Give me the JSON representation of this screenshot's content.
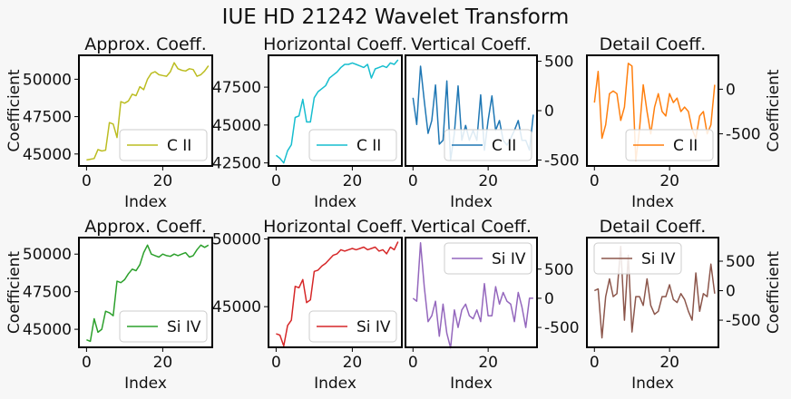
{
  "figure": {
    "title": "IUE HD 21242 Wavelet Transform",
    "background": "#f7f7f7"
  },
  "chart_data": [
    {
      "type": "line",
      "title": "Approx. Coeff.",
      "xlabel": "Index",
      "ylabel": "Coefficient",
      "y_axis_side": "left",
      "xlim": [
        -2,
        33
      ],
      "ylim": [
        44200,
        51600
      ],
      "xticks": [
        0,
        20
      ],
      "yticks": [
        45000,
        47500,
        50000
      ],
      "ytick_labels": [
        "45000",
        "47500",
        "50000"
      ],
      "legend_loc": "lower-right",
      "series": [
        {
          "name": "C II",
          "color": "#bcbd22",
          "values": [
            44600,
            44650,
            44700,
            45300,
            45200,
            45250,
            47100,
            47000,
            46100,
            48500,
            48400,
            48550,
            49000,
            48900,
            49500,
            49300,
            50000,
            50400,
            50500,
            50300,
            50250,
            50200,
            50500,
            51100,
            50700,
            50600,
            50550,
            50700,
            50650,
            50200,
            50300,
            50550,
            50900
          ]
        }
      ]
    },
    {
      "type": "line",
      "title": "Horizontal Coeff.",
      "xlabel": "Index",
      "ylabel": "",
      "y_axis_side": "left",
      "xlim": [
        -2,
        33
      ],
      "ylim": [
        42300,
        49600
      ],
      "xticks": [
        0,
        20
      ],
      "yticks": [
        42500,
        45000,
        47500
      ],
      "ytick_labels": [
        "42500",
        "45000",
        "47500"
      ],
      "legend_loc": "lower-right",
      "series": [
        {
          "name": "C II",
          "color": "#17becf",
          "values": [
            43000,
            42800,
            42500,
            43300,
            43700,
            45500,
            45600,
            46700,
            45200,
            45200,
            46800,
            47200,
            47400,
            47600,
            48100,
            48300,
            48500,
            48800,
            49000,
            49000,
            49100,
            49000,
            48900,
            48800,
            49000,
            48100,
            48700,
            48800,
            48900,
            48800,
            49100,
            49000,
            49300
          ]
        }
      ]
    },
    {
      "type": "line",
      "title": "Vertical Coeff.",
      "xlabel": "Index",
      "ylabel": "",
      "y_axis_side": "right",
      "xlim": [
        -2,
        33
      ],
      "ylim": [
        -560,
        560
      ],
      "xticks": [
        0,
        20
      ],
      "yticks": [
        -500,
        0,
        500
      ],
      "ytick_labels": [
        "-500",
        "0",
        "500"
      ],
      "legend_loc": "lower-right",
      "series": [
        {
          "name": "C II",
          "color": "#1f77b4",
          "values": [
            130,
            -140,
            450,
            100,
            -230,
            -100,
            260,
            -340,
            -300,
            300,
            -500,
            -230,
            250,
            -300,
            -150,
            -300,
            -200,
            -300,
            160,
            -400,
            -100,
            150,
            -200,
            -100,
            -300,
            -350,
            -280,
            -200,
            -100,
            -300,
            -300,
            -400,
            -40
          ]
        }
      ]
    },
    {
      "type": "line",
      "title": "Detail Coeff.",
      "xlabel": "Index",
      "ylabel": "Coefficient",
      "y_axis_side": "right",
      "xlim": [
        -2,
        33
      ],
      "ylim": [
        -860,
        380
      ],
      "xticks": [
        0,
        20
      ],
      "yticks": [
        -500,
        0
      ],
      "ytick_labels": [
        "-500",
        "0"
      ],
      "legend_loc": "lower-right",
      "series": [
        {
          "name": "C II",
          "color": "#ff7f0e",
          "values": [
            -150,
            200,
            -550,
            -400,
            -50,
            -20,
            -50,
            -350,
            -200,
            290,
            260,
            -800,
            -450,
            50,
            -250,
            -500,
            -200,
            -50,
            -250,
            -300,
            -50,
            -150,
            -100,
            -250,
            -200,
            -250,
            -450,
            -550,
            -300,
            -250,
            -500,
            -400,
            50
          ]
        }
      ]
    },
    {
      "type": "line",
      "title": "Approx. Coeff.",
      "xlabel": "Index",
      "ylabel": "Coefficient",
      "y_axis_side": "left",
      "xlim": [
        -2,
        33
      ],
      "ylim": [
        43800,
        51100
      ],
      "xticks": [
        0,
        20
      ],
      "yticks": [
        45000,
        47500,
        50000
      ],
      "ytick_labels": [
        "45000",
        "47500",
        "50000"
      ],
      "legend_loc": "lower-right",
      "series": [
        {
          "name": "Si IV",
          "color": "#2ca02c",
          "values": [
            44300,
            44200,
            45700,
            44800,
            45000,
            46200,
            46100,
            45900,
            48200,
            48100,
            48300,
            48700,
            49000,
            48900,
            49300,
            50100,
            50600,
            50000,
            49900,
            49800,
            50000,
            49900,
            49850,
            50000,
            49900,
            50000,
            50100,
            49800,
            49900,
            50300,
            50600,
            50450,
            50600
          ]
        }
      ]
    },
    {
      "type": "line",
      "title": "Horizontal Coeff.",
      "xlabel": "Index",
      "ylabel": "",
      "y_axis_side": "left",
      "xlim": [
        -2,
        33
      ],
      "ylim": [
        42000,
        50100
      ],
      "xticks": [
        0,
        20
      ],
      "yticks": [
        45000,
        50000
      ],
      "ytick_labels": [
        "45000",
        "50000"
      ],
      "legend_loc": "lower-right",
      "series": [
        {
          "name": "Si IV",
          "color": "#d62728",
          "values": [
            43000,
            42900,
            42100,
            43600,
            44000,
            46500,
            46400,
            47000,
            45300,
            45500,
            47600,
            47700,
            48000,
            48200,
            48500,
            48800,
            48900,
            49200,
            49100,
            49200,
            49300,
            49200,
            49300,
            49400,
            49200,
            49300,
            49400,
            49100,
            49200,
            48900,
            49400,
            49200,
            49800
          ]
        }
      ]
    },
    {
      "type": "line",
      "title": "Vertical Coeff.",
      "xlabel": "Index",
      "ylabel": "",
      "y_axis_side": "right",
      "xlim": [
        -2,
        33
      ],
      "ylim": [
        -840,
        1040
      ],
      "xticks": [
        0,
        20
      ],
      "yticks": [
        -500,
        0,
        500
      ],
      "ytick_labels": [
        "-500",
        "0",
        "500"
      ],
      "legend_loc": "upper-right",
      "series": [
        {
          "name": "Si IV",
          "color": "#9467bd",
          "values": [
            0,
            -50,
            950,
            200,
            -400,
            -300,
            -50,
            -650,
            -100,
            -600,
            -850,
            -200,
            -500,
            -200,
            -100,
            -300,
            -350,
            -200,
            -400,
            250,
            -300,
            -300,
            200,
            -100,
            100,
            -50,
            -100,
            -400,
            100,
            -150,
            -500,
            0,
            0
          ]
        }
      ]
    },
    {
      "type": "line",
      "title": "Detail Coeff.",
      "xlabel": "Index",
      "ylabel": "Coefficient",
      "y_axis_side": "right",
      "xlim": [
        -2,
        33
      ],
      "ylim": [
        -960,
        900
      ],
      "xticks": [
        0,
        20
      ],
      "yticks": [
        -500,
        0,
        500
      ],
      "ytick_labels": [
        "-500",
        "0",
        "500"
      ],
      "legend_loc": "upper-left",
      "series": [
        {
          "name": "Si IV",
          "color": "#8c564b",
          "values": [
            0,
            30,
            -800,
            -100,
            200,
            -100,
            -50,
            750,
            -500,
            600,
            -700,
            -100,
            -100,
            -250,
            200,
            -250,
            -400,
            -350,
            -100,
            -100,
            100,
            -150,
            -200,
            -50,
            -150,
            -350,
            -500,
            300,
            -350,
            -50,
            -100,
            450,
            -50
          ]
        }
      ]
    }
  ]
}
